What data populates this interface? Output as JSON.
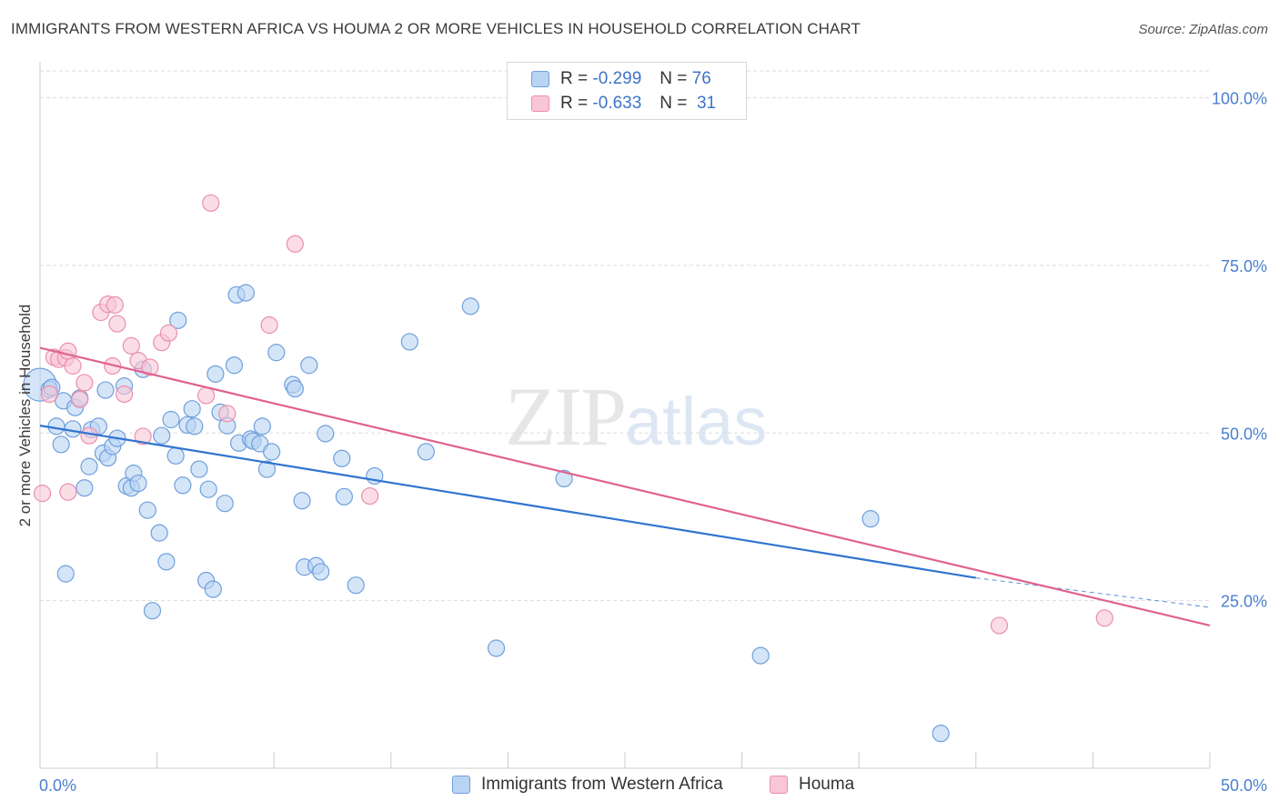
{
  "title": "IMMIGRANTS FROM WESTERN AFRICA VS HOUMA 2 OR MORE VEHICLES IN HOUSEHOLD CORRELATION CHART",
  "source": "Source: ZipAtlas.com",
  "watermark": {
    "zip": "ZIP",
    "atlas": "atlas"
  },
  "legend_top": [
    {
      "r_label": "R =",
      "r_value": "-0.299",
      "n_label": "N =",
      "n_value": "76"
    },
    {
      "r_label": "R =",
      "r_value": "-0.633",
      "n_label": "N =",
      "n_value": "31"
    }
  ],
  "legend_bottom": [
    "Immigrants from Western Africa",
    "Houma"
  ],
  "colors": {
    "blue_fill": "#b9d3f3",
    "blue_stroke": "#6f9fdc",
    "blue_line": "#2f74d0",
    "pink_fill": "#f8c6d6",
    "pink_stroke": "#ea8fad",
    "pink_line": "#e0628e",
    "grid": "#dddddd",
    "axis_label": "#4a7fd0"
  },
  "chart_data": {
    "type": "scatter",
    "title": "IMMIGRANTS FROM WESTERN AFRICA VS HOUMA 2 OR MORE VEHICLES IN HOUSEHOLD CORRELATION CHART",
    "xlabel": "",
    "ylabel": "2 or more Vehicles in Household",
    "xlim": [
      0,
      50
    ],
    "ylim": [
      0,
      104
    ],
    "x_tick_labels": [
      "0.0%",
      "50.0%"
    ],
    "y_ticks": [
      25,
      50,
      75,
      100
    ],
    "y_tick_labels": [
      "25.0%",
      "50.0%",
      "75.0%",
      "100.0%"
    ],
    "grid": true,
    "legend_position": "top-center",
    "series": [
      {
        "name": "Immigrants from Western Africa",
        "r": -0.299,
        "n": 76,
        "trend": {
          "x": [
            0,
            40
          ],
          "y": [
            51.1,
            28.4
          ],
          "dashed_to": [
            50,
            24.0
          ]
        },
        "points": [
          [
            0.0,
            57.2
          ],
          [
            0.4,
            56.5
          ],
          [
            0.5,
            56.8
          ],
          [
            0.7,
            51.0
          ],
          [
            0.9,
            48.3
          ],
          [
            1.0,
            54.8
          ],
          [
            1.1,
            29.0
          ],
          [
            1.4,
            50.6
          ],
          [
            1.5,
            53.8
          ],
          [
            1.7,
            55.2
          ],
          [
            1.9,
            41.8
          ],
          [
            2.1,
            45.0
          ],
          [
            2.2,
            50.5
          ],
          [
            2.5,
            51.0
          ],
          [
            2.7,
            47.0
          ],
          [
            2.8,
            56.4
          ],
          [
            2.9,
            46.3
          ],
          [
            3.1,
            48.0
          ],
          [
            3.3,
            49.2
          ],
          [
            3.6,
            57.0
          ],
          [
            3.7,
            42.1
          ],
          [
            3.9,
            41.8
          ],
          [
            4.0,
            44.0
          ],
          [
            4.2,
            42.5
          ],
          [
            4.4,
            59.5
          ],
          [
            4.6,
            38.5
          ],
          [
            4.8,
            23.5
          ],
          [
            5.1,
            35.1
          ],
          [
            5.2,
            49.6
          ],
          [
            5.4,
            30.8
          ],
          [
            5.6,
            52.0
          ],
          [
            5.8,
            46.6
          ],
          [
            5.9,
            66.8
          ],
          [
            6.1,
            42.2
          ],
          [
            6.3,
            51.2
          ],
          [
            6.5,
            53.6
          ],
          [
            6.6,
            51.0
          ],
          [
            6.8,
            44.6
          ],
          [
            7.1,
            28.0
          ],
          [
            7.2,
            41.6
          ],
          [
            7.4,
            26.7
          ],
          [
            7.5,
            58.8
          ],
          [
            7.7,
            53.1
          ],
          [
            7.9,
            39.5
          ],
          [
            8.0,
            51.1
          ],
          [
            8.3,
            60.1
          ],
          [
            8.4,
            70.6
          ],
          [
            8.5,
            48.5
          ],
          [
            8.8,
            70.9
          ],
          [
            9.0,
            49.1
          ],
          [
            9.1,
            48.8
          ],
          [
            9.4,
            48.4
          ],
          [
            9.5,
            51.0
          ],
          [
            9.7,
            44.6
          ],
          [
            9.9,
            47.2
          ],
          [
            10.1,
            62.0
          ],
          [
            10.8,
            57.2
          ],
          [
            10.9,
            56.6
          ],
          [
            11.2,
            39.9
          ],
          [
            11.3,
            30.0
          ],
          [
            11.5,
            60.1
          ],
          [
            11.8,
            30.2
          ],
          [
            12.0,
            29.3
          ],
          [
            12.2,
            49.9
          ],
          [
            12.9,
            46.2
          ],
          [
            13.0,
            40.5
          ],
          [
            13.5,
            27.3
          ],
          [
            14.3,
            43.6
          ],
          [
            15.8,
            63.6
          ],
          [
            16.5,
            47.2
          ],
          [
            18.4,
            68.9
          ],
          [
            19.5,
            17.9
          ],
          [
            22.4,
            43.2
          ],
          [
            30.8,
            16.8
          ],
          [
            35.5,
            37.2
          ],
          [
            38.5,
            5.2
          ]
        ]
      },
      {
        "name": "Houma",
        "r": -0.633,
        "n": 31,
        "trend": {
          "x": [
            0,
            50
          ],
          "y": [
            62.7,
            21.3
          ]
        },
        "points": [
          [
            0.1,
            41.0
          ],
          [
            0.4,
            55.8
          ],
          [
            0.6,
            61.3
          ],
          [
            0.8,
            61.0
          ],
          [
            1.1,
            61.2
          ],
          [
            1.2,
            62.2
          ],
          [
            1.2,
            41.2
          ],
          [
            1.4,
            60.0
          ],
          [
            1.7,
            55.0
          ],
          [
            1.9,
            57.5
          ],
          [
            2.1,
            49.6
          ],
          [
            2.6,
            68.0
          ],
          [
            2.9,
            69.2
          ],
          [
            3.1,
            60.0
          ],
          [
            3.2,
            69.1
          ],
          [
            3.3,
            66.3
          ],
          [
            3.6,
            55.8
          ],
          [
            3.9,
            63.0
          ],
          [
            4.2,
            60.8
          ],
          [
            4.4,
            49.5
          ],
          [
            4.7,
            59.8
          ],
          [
            5.2,
            63.5
          ],
          [
            5.5,
            64.9
          ],
          [
            7.1,
            55.6
          ],
          [
            7.3,
            84.3
          ],
          [
            8.0,
            52.9
          ],
          [
            9.8,
            66.1
          ],
          [
            10.9,
            78.2
          ],
          [
            14.1,
            40.6
          ],
          [
            41.0,
            21.3
          ],
          [
            45.5,
            22.4
          ]
        ]
      }
    ]
  }
}
